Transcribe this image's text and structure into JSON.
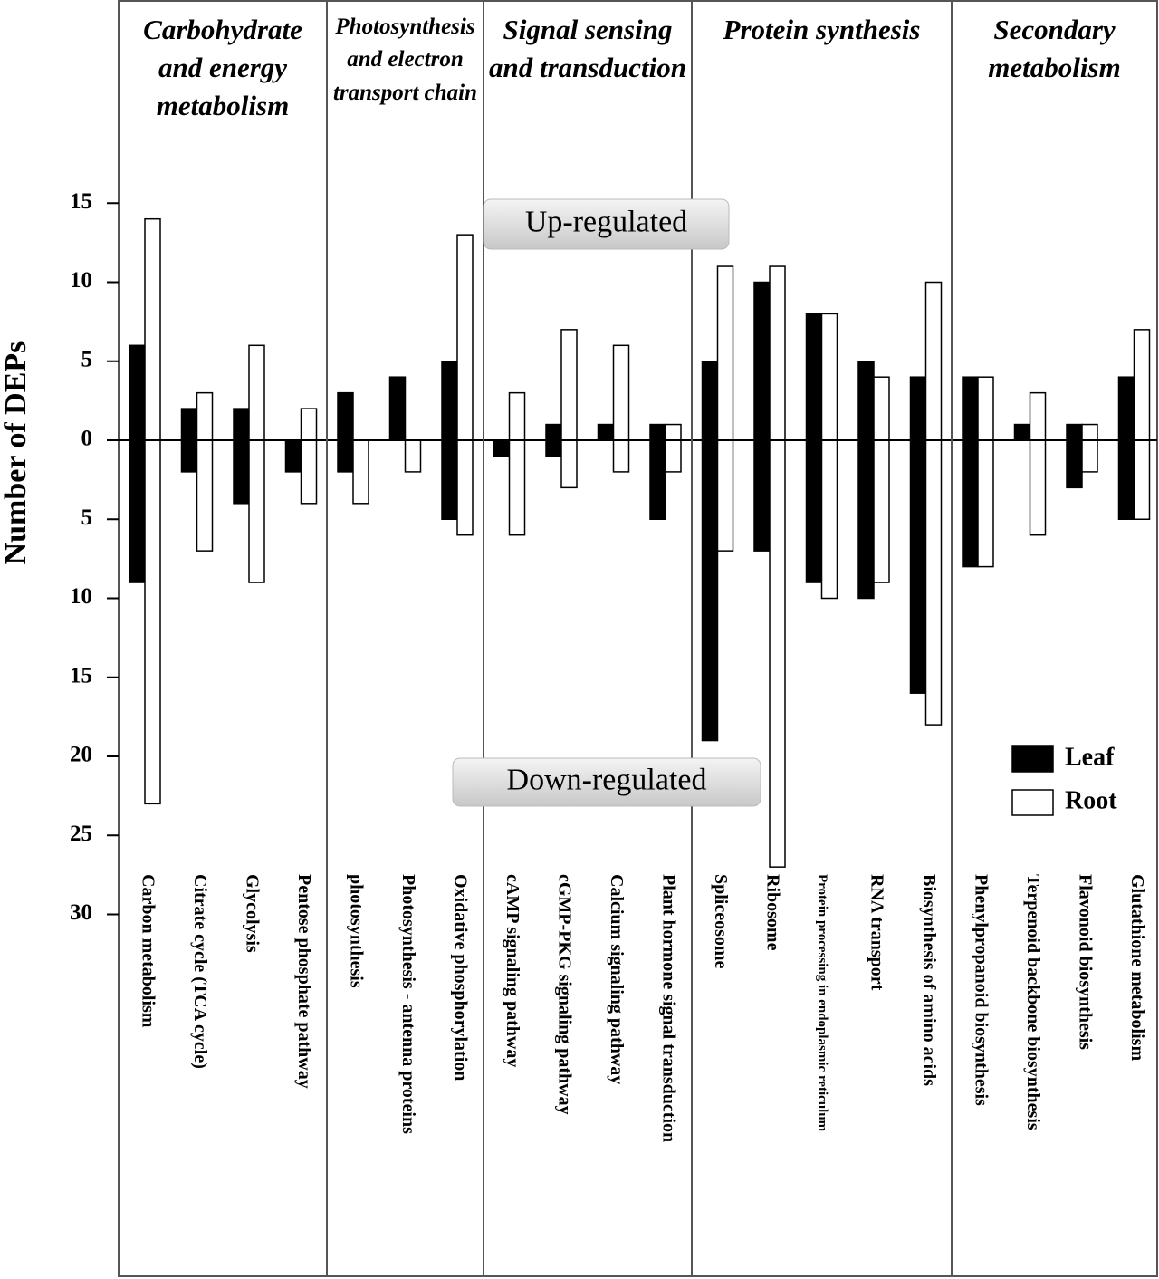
{
  "chart_data": {
    "type": "bar",
    "y_label": "Number of DEPs",
    "groups": [
      {
        "title": "Carbohydrate and energy metabolism",
        "categories": [
          "Carbon metabolism",
          "Citrate cycle (TCA cycle)",
          "Glycolysis",
          "Pentose phosphate pathway"
        ]
      },
      {
        "title": "Photosynthesis and electron transport chain",
        "categories": [
          "photosynthesis",
          "Photosynthesis - antenna proteins",
          "Oxidative phosphorylation"
        ]
      },
      {
        "title": "Signal sensing and transduction",
        "categories": [
          "cAMP signaling pathway",
          "cGMP-PKG signaling pathway",
          "Calcium signaling pathway",
          "Plant hormone signal transduction"
        ]
      },
      {
        "title": "Protein synthesis",
        "categories": [
          "Spliceosome",
          "Ribosome",
          "Protein processing in endoplasmic reticulum",
          "RNA transport",
          "Biosynthesis of amino acids"
        ]
      },
      {
        "title": "Secondary metabolism",
        "categories": [
          "Phenylpropanoid biosynthesis",
          "Terpenoid backbone biosynthesis",
          "Flavonoid biosynthesis",
          "Glutathione metabolism"
        ]
      }
    ],
    "series": [
      {
        "name": "Leaf",
        "color": "#000000",
        "values": [
          6,
          2,
          2,
          0,
          3,
          4,
          5,
          0,
          1,
          1,
          1,
          5,
          10,
          8,
          5,
          4,
          4,
          1,
          1,
          4
        ],
        "down_values": [
          -9,
          -2,
          -4,
          -2,
          -2,
          0,
          -5,
          -1,
          -1,
          0,
          -5,
          -19,
          -7,
          -9,
          -10,
          -16,
          -8,
          0,
          -3,
          -5
        ]
      },
      {
        "name": "Root",
        "color": "#ffffff",
        "values": [
          14,
          3,
          6,
          2,
          0,
          0,
          13,
          3,
          7,
          6,
          1,
          11,
          11,
          8,
          4,
          10,
          4,
          3,
          1,
          7
        ],
        "down_values": [
          -23,
          -7,
          -9,
          -4,
          -4,
          -2,
          -6,
          -6,
          -3,
          -2,
          -2,
          -7,
          -27,
          -10,
          -9,
          -18,
          -8,
          -6,
          -2,
          -5
        ]
      }
    ],
    "annotations": [
      "Up-regulated",
      "Down-regulated"
    ],
    "ylim": [
      -30,
      15
    ],
    "yticks": [
      15,
      10,
      5,
      0,
      {
        "value": -5,
        "label": "5"
      },
      {
        "value": -10,
        "label": "10"
      },
      {
        "value": -15,
        "label": "15"
      },
      {
        "value": -20,
        "label": "20"
      },
      {
        "value": -25,
        "label": "25"
      },
      {
        "value": -30,
        "label": "30"
      }
    ],
    "legend": "lower right"
  }
}
